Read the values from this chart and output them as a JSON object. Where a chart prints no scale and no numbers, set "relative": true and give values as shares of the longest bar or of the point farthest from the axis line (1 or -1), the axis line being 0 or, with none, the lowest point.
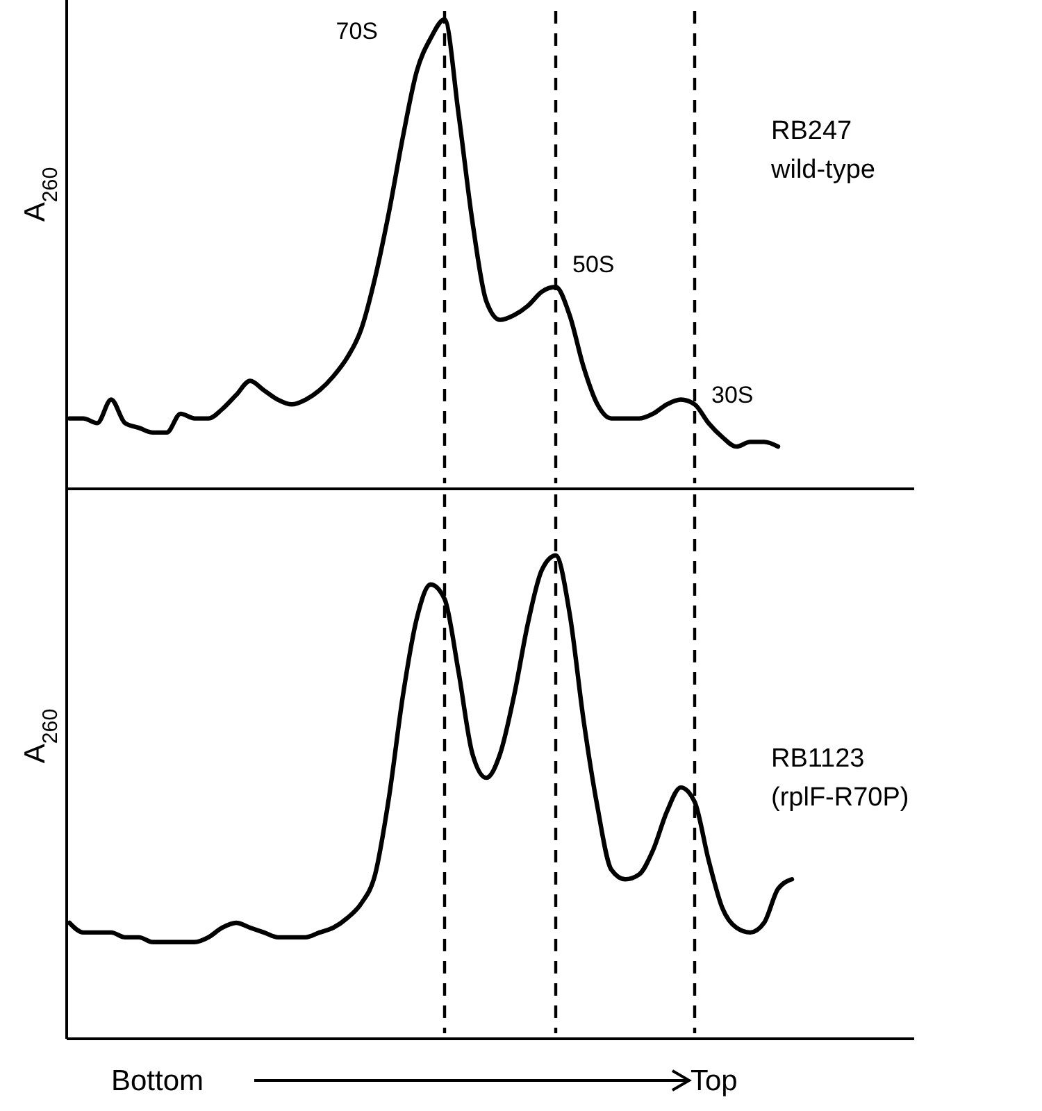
{
  "chart_data": [
    {
      "type": "line",
      "relative": true,
      "ylabel": "A$_{260}$",
      "categories": [
        null,
        null,
        null,
        null,
        null,
        null,
        null,
        null,
        null,
        null,
        null,
        null,
        null,
        null,
        null,
        null,
        null,
        null,
        null,
        null,
        null,
        null,
        null,
        null,
        null,
        null,
        null,
        null,
        null,
        null,
        null,
        null,
        null,
        null,
        null,
        null,
        null,
        null,
        null,
        null,
        null,
        null,
        null,
        null,
        null,
        null,
        null,
        null,
        null,
        null,
        null,
        null,
        null,
        null,
        null,
        null,
        null,
        null,
        null,
        null,
        null,
        null
      ],
      "series": [
        {
          "color": "#000000",
          "values": [
            0.15,
            0.15,
            0.14,
            0.19,
            0.14,
            0.13,
            0.12,
            0.12,
            0.16,
            0.15,
            0.15,
            0.17,
            0.2,
            0.23,
            0.21,
            0.19,
            0.18,
            0.19,
            0.21,
            0.24,
            0.28,
            0.34,
            0.45,
            0.59,
            0.75,
            0.89,
            0.96,
            1.0,
            0.8,
            0.57,
            0.4,
            0.36,
            0.37,
            0.39,
            0.42,
            0.43,
            0.37,
            0.26,
            0.18,
            0.15,
            0.15,
            0.15,
            0.16,
            0.18,
            0.19,
            0.18,
            0.14,
            0.11,
            0.09,
            0.1,
            0.1,
            0.09,
            null,
            null,
            null,
            null,
            null,
            null,
            null,
            null,
            null,
            null
          ]
        }
      ],
      "annotations": [
        "RB247",
        "wild-type",
        "70S",
        "50S",
        "30S"
      ],
      "grid": "x"
    },
    {
      "type": "line",
      "relative": true,
      "ylabel": "A$_{260}$",
      "xlabel": "Bottom",
      "categories": [
        null,
        null,
        null,
        null,
        null,
        null,
        null,
        null,
        null,
        null,
        null,
        null,
        null,
        null,
        null,
        null,
        null,
        null,
        null,
        null,
        null,
        null,
        null,
        null,
        null,
        null,
        null,
        null,
        null,
        null,
        null,
        null,
        null,
        null,
        null,
        null,
        null,
        null,
        null,
        null,
        null,
        null,
        null,
        null,
        null,
        null,
        null,
        null,
        null,
        null,
        null,
        null,
        null,
        null,
        null,
        null,
        null,
        null,
        null,
        null,
        null,
        null
      ],
      "series": [
        {
          "color": "#000000",
          "values": [
            0.24,
            0.22,
            0.22,
            0.22,
            0.21,
            0.21,
            0.2,
            0.2,
            0.2,
            0.2,
            0.21,
            0.23,
            0.24,
            0.23,
            0.22,
            0.21,
            0.21,
            0.21,
            0.22,
            0.23,
            0.25,
            0.28,
            0.34,
            0.5,
            0.71,
            0.87,
            0.94,
            0.91,
            0.76,
            0.59,
            0.54,
            0.59,
            0.71,
            0.86,
            0.97,
            1.0,
            0.88,
            0.66,
            0.48,
            0.35,
            0.33,
            0.34,
            0.39,
            0.47,
            0.52,
            0.49,
            0.37,
            0.27,
            0.23,
            0.22,
            0.24,
            0.31,
            0.33,
            null,
            null,
            null,
            null,
            null,
            null,
            null,
            null,
            null
          ]
        }
      ],
      "annotations": [
        "RB1123",
        "(rplF-R70P)",
        "Top"
      ],
      "grid": "x"
    }
  ]
}
